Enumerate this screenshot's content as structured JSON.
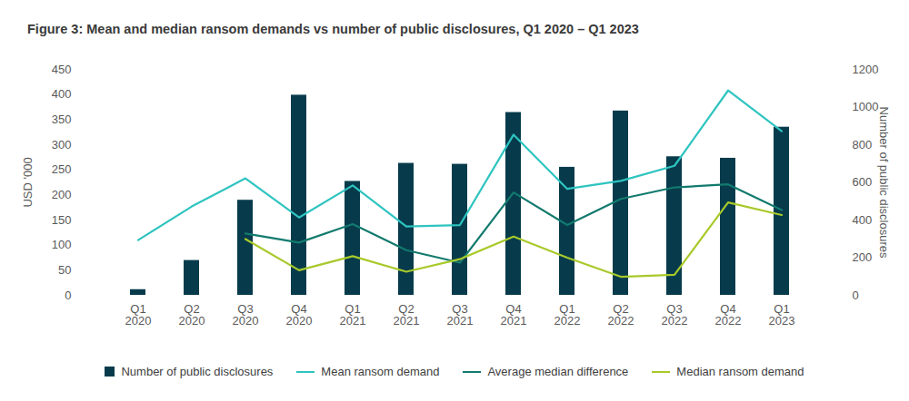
{
  "chart_data": {
    "type": "bar",
    "title": "Figure 3: Mean and median ransom demands vs number of public disclosures, Q1 2020 – Q1 2023",
    "categories": [
      "Q1\n2020",
      "Q2\n2020",
      "Q3\n2020",
      "Q4\n2020",
      "Q1\n2021",
      "Q2\n2021",
      "Q3\n2021",
      "Q4\n2021",
      "Q1\n2022",
      "Q2\n2022",
      "Q3\n2022",
      "Q4\n2022",
      "Q1\n2023"
    ],
    "ylabel": "USD '000",
    "y2label": "Number of public disclosures",
    "ylim": [
      0,
      450
    ],
    "yticks": [
      0,
      50,
      100,
      150,
      200,
      250,
      300,
      350,
      400,
      450
    ],
    "y2lim": [
      0,
      1200
    ],
    "y2ticks": [
      0,
      200,
      400,
      600,
      800,
      1000,
      1200
    ],
    "grid": false,
    "legend": "bottom",
    "series": [
      {
        "name": "Number of public disclosures",
        "type": "bar",
        "axis": "y2",
        "color": "#073b4c",
        "values": [
          30,
          185,
          505,
          1063,
          605,
          701,
          696,
          971,
          680,
          979,
          736,
          728,
          893
        ]
      },
      {
        "name": "Mean ransom demand",
        "type": "line",
        "color": "#2ec4c0",
        "values": [
          110,
          177,
          233,
          155,
          219,
          137,
          140,
          320,
          212,
          228,
          258,
          408,
          327
        ]
      },
      {
        "name": "Average median difference",
        "type": "line",
        "color": "#127a6e",
        "values": [
          null,
          null,
          123,
          105,
          142,
          90,
          65,
          205,
          140,
          192,
          215,
          221,
          170
        ]
      },
      {
        "name": "Median ransom demand",
        "type": "line",
        "color": "#a8c92a",
        "values": [
          null,
          null,
          112,
          50,
          78,
          47,
          72,
          117,
          75,
          37,
          41,
          185,
          160
        ]
      }
    ]
  }
}
